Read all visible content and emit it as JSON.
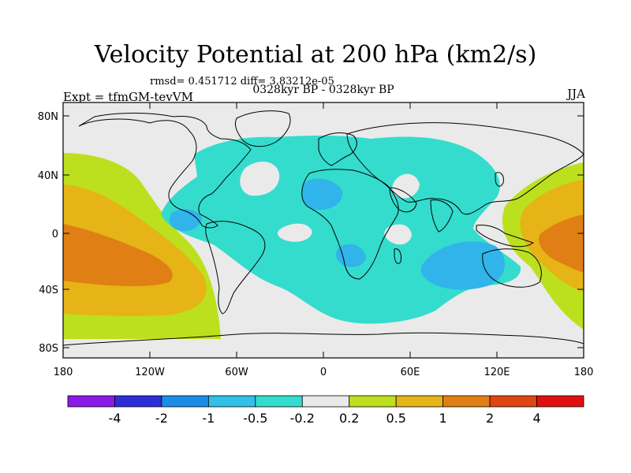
{
  "title": "Velocity Potential at 200 hPa (km2/s)",
  "stats_line": "rmsd= 0.451712 diff= 3.83212e-05",
  "period_label": "0328kyr BP - 0328kyr BP",
  "experiment": "Expt = tfmGM-tevVM",
  "season": "JJA",
  "axes": {
    "y_ticks": [
      "80N",
      "40N",
      "0",
      "40S",
      "80S"
    ],
    "x_ticks": [
      "180",
      "120W",
      "60W",
      "0",
      "60E",
      "120E",
      "180"
    ]
  },
  "colorbar": {
    "labels": [
      "-4",
      "-2",
      "-1",
      "-0.5",
      "-0.2",
      "0.2",
      "0.5",
      "1",
      "2",
      "4"
    ],
    "colors": [
      "#8a1ae6",
      "#2d2fd6",
      "#1a8ee6",
      "#30c0ea",
      "#34dccd",
      "#eaeaea",
      "#bde01e",
      "#e6b416",
      "#e07f14",
      "#e0460f",
      "#e01010"
    ]
  },
  "map_colors": {
    "background": "#eaeaea",
    "cyan": "#34dccd",
    "light_blue": "#30b4ea",
    "yellow_green": "#bde01e",
    "yellow": "#e6b416",
    "orange": "#e07f14",
    "coastline": "#000000"
  }
}
